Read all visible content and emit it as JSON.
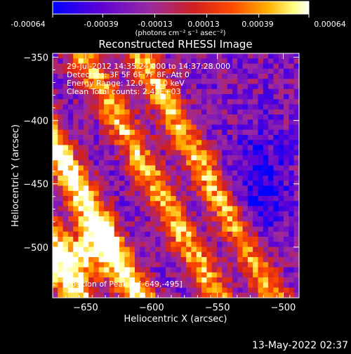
{
  "colorbar": {
    "tick_labels": [
      "-0.00064",
      "-0.00039",
      "-0.00013",
      "0.00013",
      "0.00039",
      "0.00064"
    ],
    "range": [
      -0.00064,
      0.00064
    ],
    "units": "(photons cm⁻² s⁻¹ asec⁻²)",
    "colormap": [
      "#0000ff",
      "#5a00d8",
      "#9a2aa0",
      "#d02020",
      "#ff4a00",
      "#ffb000",
      "#ffff80",
      "#ffffff"
    ]
  },
  "title": "Reconstructed RHESSI Image",
  "annotations": [
    "29-Jul-2012 14:35:24.000 to 14:37:28.000",
    "Detectors: 3F 5F 6F 7F 8F, Att 0",
    "Energy Range: 12.0 - 25.0 keV",
    "Clean    Total counts: 2.43E+03"
  ],
  "peak_label": "Position of Peak = [-649,-495]",
  "timestamp": "13-May-2022 02:37",
  "chart_data": {
    "type": "heatmap",
    "title": "Reconstructed RHESSI Image",
    "xlabel": "Heliocentric X (arcsec)",
    "ylabel": "Heliocentric Y (arcsec)",
    "xlim": [
      -675,
      -488
    ],
    "ylim": [
      -540,
      -347
    ],
    "xticks": [
      -650,
      -600,
      -550,
      -500
    ],
    "yticks": [
      -350,
      -400,
      -450,
      -500
    ],
    "peak": [
      -649,
      -495
    ],
    "value_range": [
      -0.00064,
      0.00064
    ]
  }
}
